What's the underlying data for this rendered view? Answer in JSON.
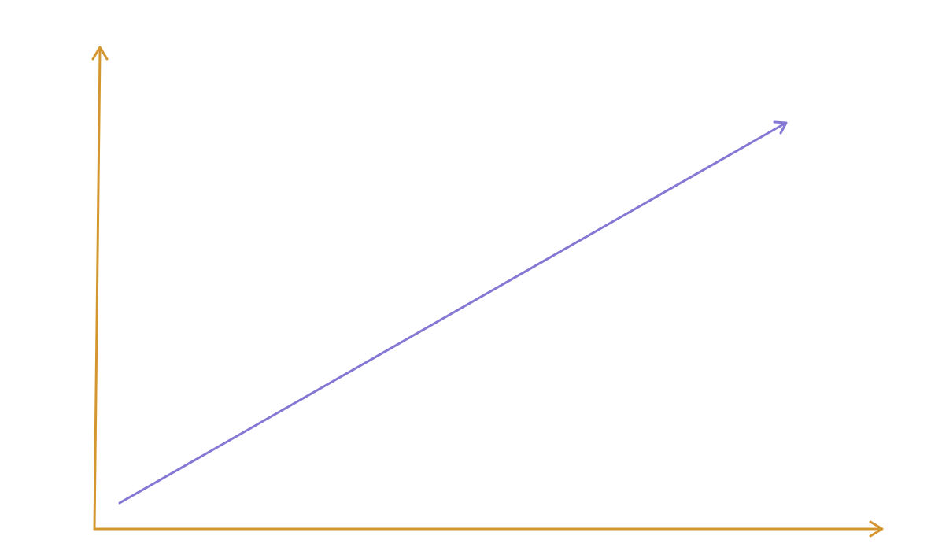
{
  "colors": {
    "background": "#ffffff",
    "axis": "#d4962f",
    "trend": "#8478d4"
  },
  "axes": {
    "x_axis": {
      "direction": "right",
      "arrowhead": true
    },
    "y_axis": {
      "direction": "up",
      "arrowhead": true
    }
  },
  "trend_line": {
    "direction": "up-right",
    "arrowhead": true
  }
}
